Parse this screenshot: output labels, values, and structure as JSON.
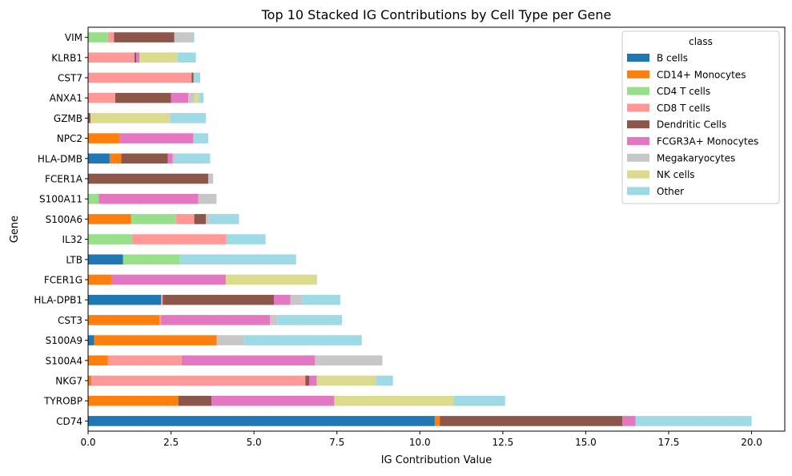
{
  "chart_data": {
    "type": "bar",
    "orientation": "horizontal",
    "stacked": true,
    "title": "Top 10 Stacked IG Contributions by Cell Type per Gene",
    "xlabel": "IG Contribution Value",
    "ylabel": "Gene",
    "xlim": [
      0,
      21
    ],
    "xticks": [
      0.0,
      2.5,
      5.0,
      7.5,
      10.0,
      12.5,
      15.0,
      17.5,
      20.0
    ],
    "xtick_labels": [
      "0.0",
      "2.5",
      "5.0",
      "7.5",
      "10.0",
      "12.5",
      "15.0",
      "17.5",
      "20.0"
    ],
    "grid": false,
    "legend": {
      "title": "class",
      "position": "top-right"
    },
    "categories": [
      "VIM",
      "KLRB1",
      "CST7",
      "ANXA1",
      "GZMB",
      "NPC2",
      "HLA-DMB",
      "FCER1A",
      "S100A11",
      "S100A6",
      "IL32",
      "LTB",
      "FCER1G",
      "HLA-DPB1",
      "CST3",
      "S100A9",
      "S100A4",
      "NKG7",
      "TYROBP",
      "CD74"
    ],
    "series": [
      {
        "name": "B cells",
        "color": "#1f77b4",
        "values": [
          0,
          0,
          0,
          0,
          0,
          0,
          0.65,
          0,
          0,
          0,
          0,
          1.05,
          0,
          2.2,
          0,
          0.18,
          0,
          0,
          0,
          10.45
        ]
      },
      {
        "name": "CD14+ Monocytes",
        "color": "#ff7f0e",
        "values": [
          0,
          0,
          0,
          0,
          0,
          0.95,
          0.35,
          0,
          0,
          1.3,
          0,
          0,
          0.7,
          0,
          2.15,
          3.7,
          0.6,
          0.1,
          2.72,
          0.15
        ]
      },
      {
        "name": "CD4 T cells",
        "color": "#98df8a",
        "values": [
          0.6,
          0,
          0,
          0,
          0,
          0,
          0,
          0,
          0.32,
          1.35,
          1.32,
          1.72,
          0,
          0,
          0,
          0,
          0,
          0,
          0,
          0
        ]
      },
      {
        "name": "CD8 T cells",
        "color": "#ff9896",
        "values": [
          0.18,
          1.4,
          3.12,
          0.82,
          0,
          0,
          0,
          0,
          0,
          0.55,
          2.85,
          0,
          0,
          0.05,
          0.05,
          0,
          2.22,
          6.45,
          0,
          0
        ]
      },
      {
        "name": "Dendritic Cells",
        "color": "#8c564b",
        "values": [
          1.82,
          0.05,
          0.06,
          1.68,
          0.07,
          0,
          1.4,
          3.62,
          0,
          0.35,
          0,
          0,
          0,
          3.35,
          0,
          0,
          0,
          0.12,
          1.0,
          5.5
        ]
      },
      {
        "name": "FCGR3A+ Monocytes",
        "color": "#e377c2",
        "values": [
          0,
          0.1,
          0,
          0.52,
          0,
          2.22,
          0.15,
          0,
          3.0,
          0,
          0,
          0,
          3.45,
          0.5,
          3.28,
          0,
          4.02,
          0.22,
          3.7,
          0.4
        ]
      },
      {
        "name": "Megakaryocytes",
        "color": "#c7c7c7",
        "values": [
          0.55,
          0,
          0,
          0.18,
          0,
          0,
          0.08,
          0.15,
          0.55,
          0.1,
          0,
          0,
          0,
          0.35,
          0.22,
          0.82,
          2.03,
          0,
          0,
          0
        ]
      },
      {
        "name": "NK cells",
        "color": "#dbdb8d",
        "values": [
          0,
          1.15,
          0,
          0.14,
          2.4,
          0,
          0,
          0,
          0,
          0,
          0,
          0,
          2.75,
          0,
          0,
          0,
          0,
          1.8,
          3.6,
          0
        ]
      },
      {
        "name": "Other",
        "color": "#9edae5",
        "values": [
          0.05,
          0.55,
          0.2,
          0.14,
          1.08,
          0.45,
          1.05,
          0,
          0,
          0.9,
          1.18,
          3.5,
          0,
          1.15,
          1.95,
          3.55,
          0,
          0.5,
          1.55,
          3.5
        ]
      }
    ]
  }
}
